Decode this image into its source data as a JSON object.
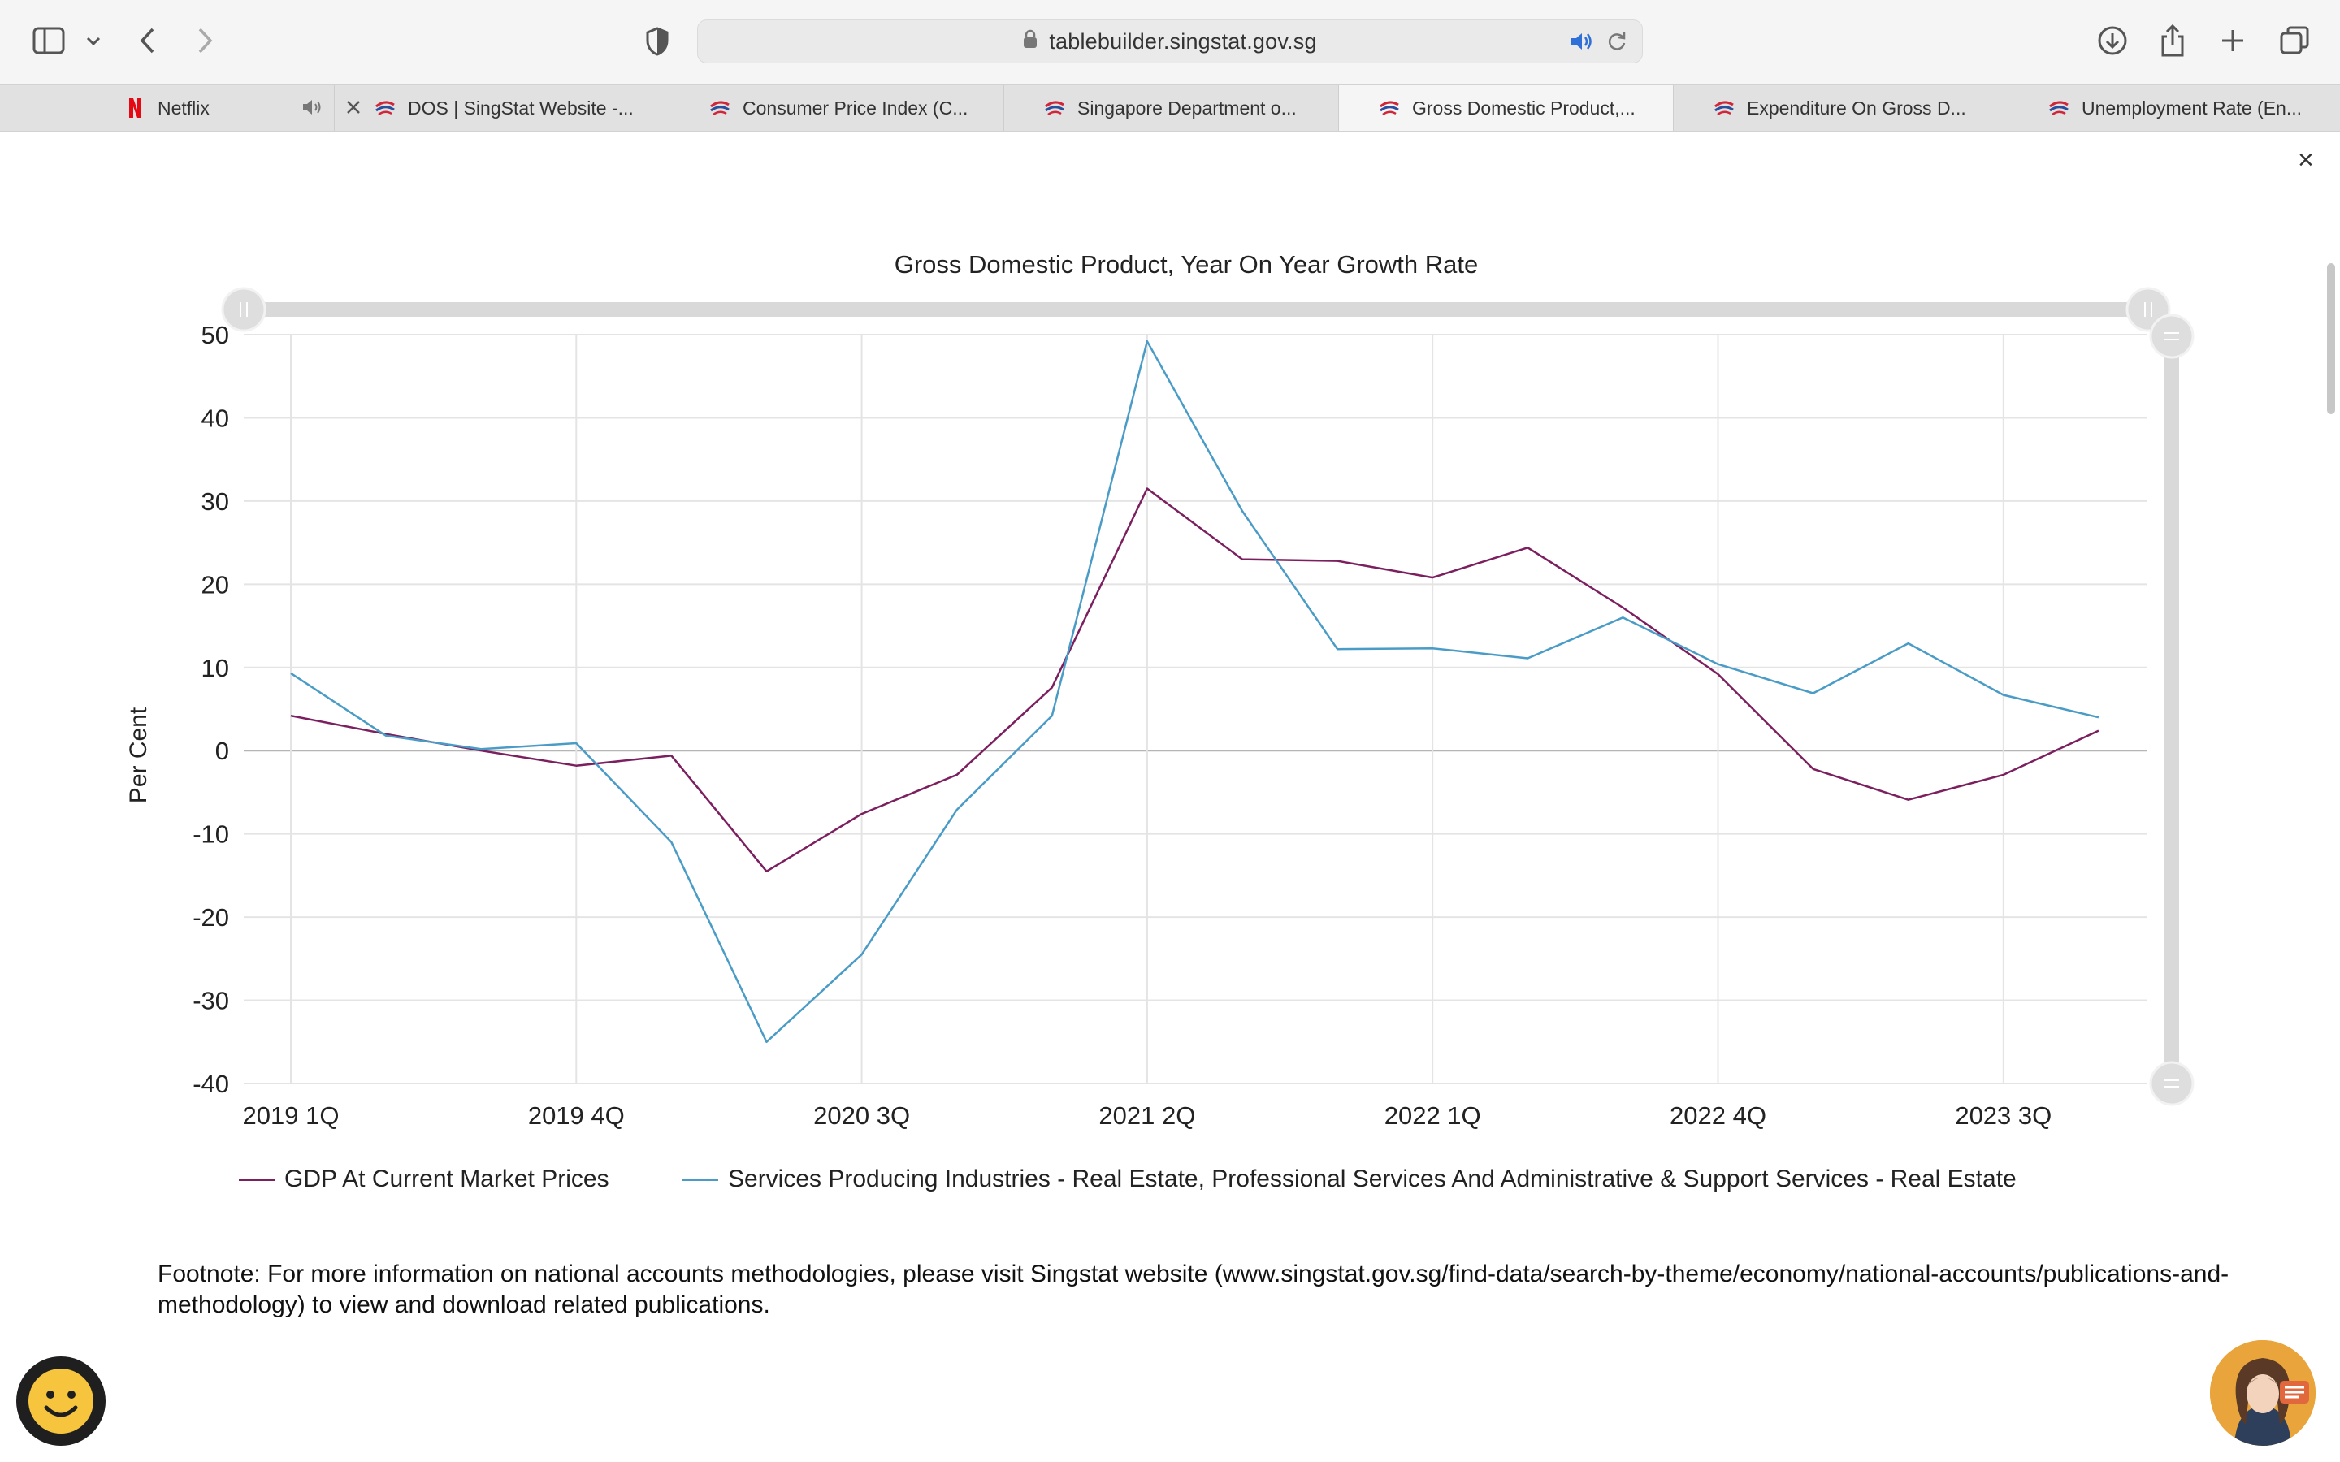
{
  "browser": {
    "url": "tablebuilder.singstat.gov.sg",
    "tabs": [
      {
        "label": "Netflix",
        "favicon": "netflix-icon"
      },
      {
        "label": "DOS | SingStat Website -...",
        "favicon": "singstat-icon"
      },
      {
        "label": "Consumer Price Index (C...",
        "favicon": "singstat-icon"
      },
      {
        "label": "Singapore Department o...",
        "favicon": "singstat-icon"
      },
      {
        "label": "Gross Domestic Product,...",
        "favicon": "singstat-icon"
      },
      {
        "label": "Expenditure On Gross D...",
        "favicon": "singstat-icon"
      },
      {
        "label": "Unemployment Rate (En...",
        "favicon": "singstat-icon"
      }
    ]
  },
  "page": {
    "close_label": "×",
    "footnote": "Footnote: For more information on national accounts methodologies, please visit Singstat website (www.singstat.gov.sg/find-data/search-by-theme/economy/national-accounts/publications-and-methodology) to view and download related publications."
  },
  "chart_data": {
    "type": "line",
    "title": "Gross Domestic Product, Year On Year Growth Rate",
    "xlabel": "",
    "ylabel": "Per Cent",
    "ylim": [
      -40,
      50
    ],
    "yticks": [
      50,
      40,
      30,
      20,
      10,
      0,
      -10,
      -20,
      -30,
      -40
    ],
    "categories": [
      "2019 1Q",
      "2019 2Q",
      "2019 3Q",
      "2019 4Q",
      "2020 1Q",
      "2020 2Q",
      "2020 3Q",
      "2020 4Q",
      "2021 1Q",
      "2021 2Q",
      "2021 3Q",
      "2021 4Q",
      "2022 1Q",
      "2022 2Q",
      "2022 3Q",
      "2022 4Q",
      "2023 1Q",
      "2023 2Q",
      "2023 3Q",
      "2023 4Q"
    ],
    "tick_labels": [
      "2019 1Q",
      "2019 4Q",
      "2020 3Q",
      "2021 2Q",
      "2022 1Q",
      "2022 4Q",
      "2023 3Q"
    ],
    "legend_position": "bottom",
    "series": [
      {
        "name": "GDP At Current Market Prices",
        "color": "#7b1f5f",
        "values": [
          4.2,
          2.0,
          0.0,
          -1.8,
          -0.6,
          -14.5,
          -7.6,
          -2.9,
          7.6,
          31.5,
          23.0,
          22.8,
          20.8,
          24.4,
          17.2,
          9.2,
          -2.2,
          -5.9,
          -2.9,
          2.4
        ]
      },
      {
        "name": "Services Producing Industries - Real Estate, Professional Services And Administrative & Support Services - Real Estate",
        "color": "#4a9cc7",
        "values": [
          9.3,
          1.8,
          0.2,
          0.9,
          -11.0,
          -35.0,
          -24.5,
          -7.1,
          4.2,
          49.2,
          28.8,
          12.2,
          12.3,
          11.1,
          16.0,
          10.4,
          6.9,
          12.9,
          6.7,
          4.0
        ]
      }
    ]
  }
}
